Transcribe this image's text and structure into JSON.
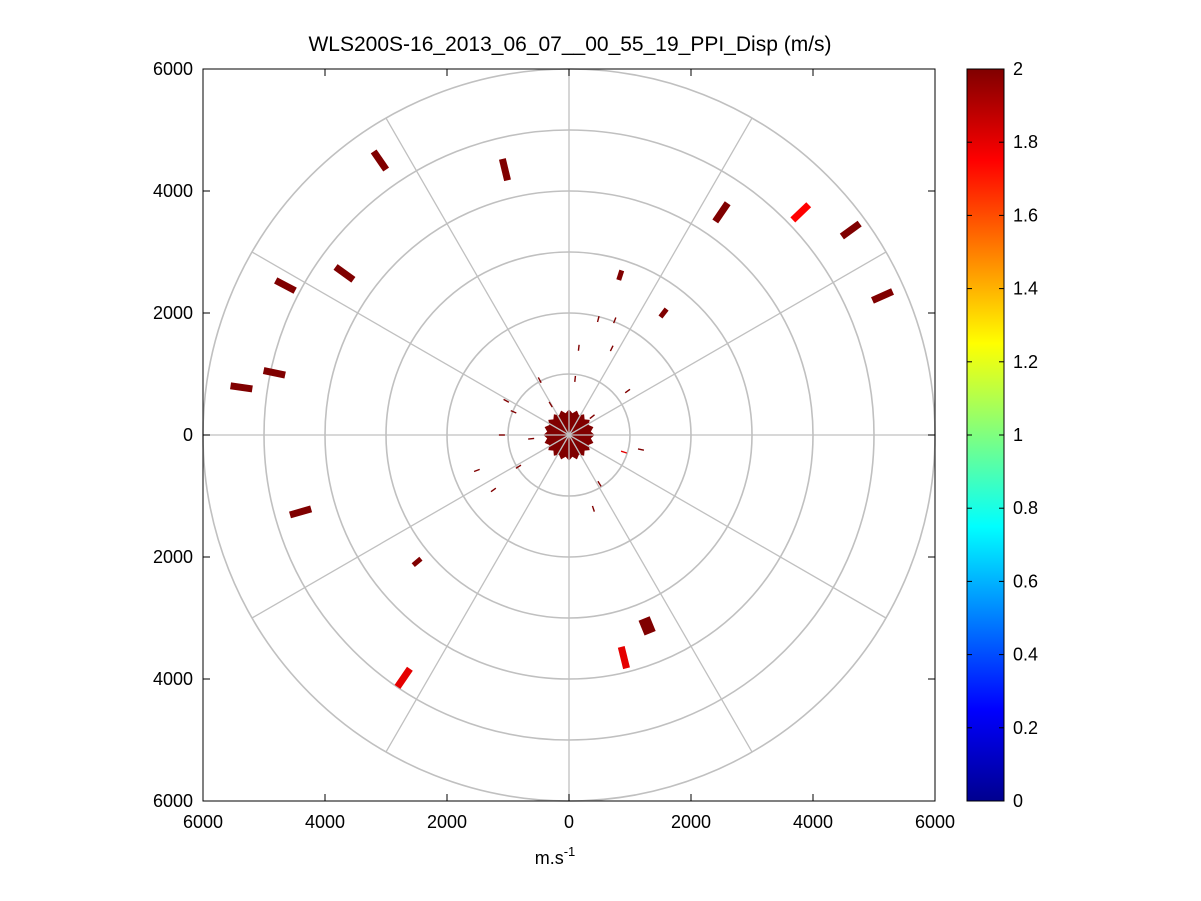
{
  "chart_data": {
    "type": "ppi-polar-scatter",
    "title": "WLS200S-16_2013_06_07__00_55_19_PPI_Disp (m/s)",
    "xlabel_base": "m.s",
    "xlabel_exp": "-1",
    "ylabel": "",
    "xlim": [
      -6000,
      6000
    ],
    "ylim": [
      -6000,
      6000
    ],
    "x_ticks": [
      -6000,
      -4000,
      -2000,
      0,
      2000,
      4000,
      6000
    ],
    "y_ticks": [
      6000,
      4000,
      2000,
      0,
      -2000,
      -4000,
      -6000
    ],
    "x_tick_labels": [
      "6000",
      "4000",
      "2000",
      "0",
      "2000",
      "4000",
      "6000"
    ],
    "y_tick_labels": [
      "6000",
      "4000",
      "2000",
      "0",
      "2000",
      "4000",
      "6000"
    ],
    "polar_rings": [
      1000,
      2000,
      3000,
      4000,
      5000,
      6000
    ],
    "radial_spokes_deg": [
      0,
      30,
      60,
      90,
      120,
      150,
      180,
      210,
      240,
      270,
      300,
      330
    ],
    "grid_color": "#c0c0c0",
    "colorbar": {
      "colormap": "jet",
      "min": 0,
      "max": 2,
      "ticks": [
        0,
        0.2,
        0.4,
        0.6,
        0.8,
        1,
        1.2,
        1.4,
        1.6,
        1.8,
        2
      ],
      "tick_labels": [
        "0",
        "0.2",
        "0.4",
        "0.6",
        "0.8",
        "1",
        "1.2",
        "1.4",
        "1.6",
        "1.8",
        "2"
      ]
    },
    "center_blob": {
      "radius": 420,
      "value": 2.0
    },
    "points": [
      {
        "x": -3100,
        "y": 4500,
        "value": 2.0,
        "size": "large"
      },
      {
        "x": -1050,
        "y": 4350,
        "value": 2.0,
        "size": "large"
      },
      {
        "x": 2500,
        "y": 3650,
        "value": 2.0,
        "size": "large"
      },
      {
        "x": 3800,
        "y": 3650,
        "value": 1.75,
        "size": "large"
      },
      {
        "x": 4620,
        "y": 3360,
        "value": 2.0,
        "size": "large"
      },
      {
        "x": 5140,
        "y": 2280,
        "value": 2.0,
        "size": "large"
      },
      {
        "x": -4650,
        "y": 2450,
        "value": 2.0,
        "size": "large"
      },
      {
        "x": -3680,
        "y": 2650,
        "value": 2.0,
        "size": "large"
      },
      {
        "x": -5370,
        "y": 780,
        "value": 2.0,
        "size": "large"
      },
      {
        "x": -4830,
        "y": 1020,
        "value": 2.0,
        "size": "large"
      },
      {
        "x": 840,
        "y": 2620,
        "value": 2.0,
        "size": "medium"
      },
      {
        "x": 1550,
        "y": 2000,
        "value": 2.0,
        "size": "medium"
      },
      {
        "x": -4400,
        "y": -1260,
        "value": 2.0,
        "size": "large"
      },
      {
        "x": -2490,
        "y": -2080,
        "value": 2.0,
        "size": "medium"
      },
      {
        "x": 1280,
        "y": -3130,
        "value": 2.0,
        "size": "xlarge"
      },
      {
        "x": 900,
        "y": -3650,
        "value": 1.8,
        "size": "large"
      },
      {
        "x": -2710,
        "y": -3980,
        "value": 1.8,
        "size": "large"
      },
      {
        "x": 480,
        "y": 1900,
        "value": 2.0,
        "size": "small"
      },
      {
        "x": 750,
        "y": 1880,
        "value": 2.0,
        "size": "small"
      },
      {
        "x": 700,
        "y": 1420,
        "value": 2.0,
        "size": "small"
      },
      {
        "x": 160,
        "y": 1430,
        "value": 2.0,
        "size": "small"
      },
      {
        "x": -480,
        "y": 900,
        "value": 2.0,
        "size": "small"
      },
      {
        "x": 100,
        "y": 920,
        "value": 2.0,
        "size": "small"
      },
      {
        "x": 960,
        "y": 720,
        "value": 2.0,
        "size": "small"
      },
      {
        "x": -1030,
        "y": 560,
        "value": 2.0,
        "size": "small"
      },
      {
        "x": -910,
        "y": 380,
        "value": 2.0,
        "size": "small"
      },
      {
        "x": -1100,
        "y": 0,
        "value": 2.0,
        "size": "small"
      },
      {
        "x": -620,
        "y": -60,
        "value": 2.0,
        "size": "small"
      },
      {
        "x": 1180,
        "y": -240,
        "value": 2.0,
        "size": "small"
      },
      {
        "x": 900,
        "y": -280,
        "value": 1.8,
        "size": "small"
      },
      {
        "x": -830,
        "y": -520,
        "value": 2.0,
        "size": "small"
      },
      {
        "x": -1510,
        "y": -580,
        "value": 2.0,
        "size": "small"
      },
      {
        "x": -1240,
        "y": -900,
        "value": 2.0,
        "size": "small"
      },
      {
        "x": 400,
        "y": -1210,
        "value": 2.0,
        "size": "small"
      },
      {
        "x": 500,
        "y": -800,
        "value": 2.0,
        "size": "small"
      },
      {
        "x": 380,
        "y": 300,
        "value": 2.0,
        "size": "small"
      },
      {
        "x": -300,
        "y": 500,
        "value": 2.0,
        "size": "small"
      }
    ]
  }
}
